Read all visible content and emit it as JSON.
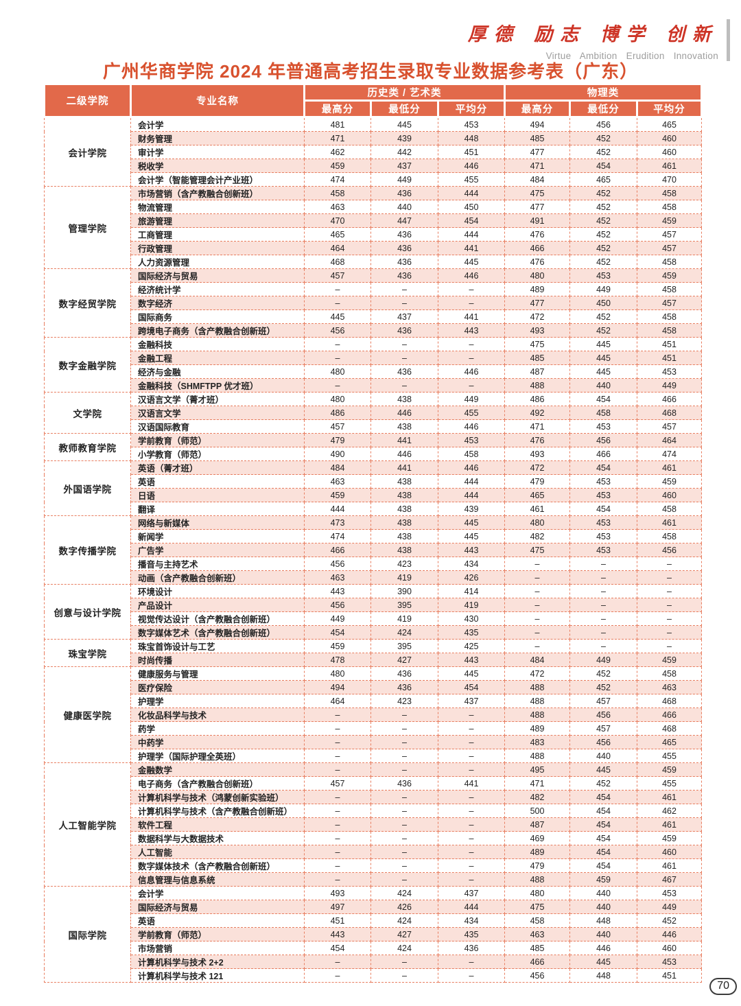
{
  "page": {
    "motto_cn": "厚德 励志 博学 创新",
    "motto_en": "Virtue  Ambition  Erudition  Innovation",
    "title": "广州华商学院 2024 年普通高考招生录取专业数据参考表（广东）",
    "page_number": "70"
  },
  "colors": {
    "header_bg": "#e2694a",
    "row_alt_bg": "#fae1da",
    "dashed_border": "#e87d5f",
    "title_text": "#d8512e",
    "motto_red": "#cd3426",
    "motto_gray": "#9d9d9d"
  },
  "table": {
    "headers": {
      "college": "二级学院",
      "major": "专业名称",
      "hist_group": "历史类 / 艺术类",
      "phys_group": "物理类",
      "sub": [
        "最高分",
        "最低分",
        "平均分",
        "最高分",
        "最低分",
        "平均分"
      ]
    },
    "colleges": [
      {
        "name": "会计学院",
        "majors": [
          {
            "name": "会计学",
            "scores": [
              "481",
              "445",
              "453",
              "494",
              "456",
              "465"
            ]
          },
          {
            "name": "财务管理",
            "scores": [
              "471",
              "439",
              "448",
              "485",
              "452",
              "460"
            ]
          },
          {
            "name": "审计学",
            "scores": [
              "462",
              "442",
              "451",
              "477",
              "452",
              "460"
            ]
          },
          {
            "name": "税收学",
            "scores": [
              "459",
              "437",
              "446",
              "471",
              "454",
              "461"
            ]
          },
          {
            "name": "会计学（智能管理会计产业班）",
            "scores": [
              "474",
              "449",
              "455",
              "484",
              "465",
              "470"
            ]
          }
        ]
      },
      {
        "name": "管理学院",
        "majors": [
          {
            "name": "市场营销（含产教融合创新班）",
            "scores": [
              "458",
              "436",
              "444",
              "475",
              "452",
              "458"
            ]
          },
          {
            "name": "物流管理",
            "scores": [
              "463",
              "440",
              "450",
              "477",
              "452",
              "458"
            ]
          },
          {
            "name": "旅游管理",
            "scores": [
              "470",
              "447",
              "454",
              "491",
              "452",
              "459"
            ]
          },
          {
            "name": "工商管理",
            "scores": [
              "465",
              "436",
              "444",
              "476",
              "452",
              "457"
            ]
          },
          {
            "name": "行政管理",
            "scores": [
              "464",
              "436",
              "441",
              "466",
              "452",
              "457"
            ]
          },
          {
            "name": "人力资源管理",
            "scores": [
              "468",
              "436",
              "445",
              "476",
              "452",
              "458"
            ]
          }
        ]
      },
      {
        "name": "数字经贸学院",
        "majors": [
          {
            "name": "国际经济与贸易",
            "scores": [
              "457",
              "436",
              "446",
              "480",
              "453",
              "459"
            ]
          },
          {
            "name": "经济统计学",
            "scores": [
              "–",
              "–",
              "–",
              "489",
              "449",
              "458"
            ]
          },
          {
            "name": "数字经济",
            "scores": [
              "–",
              "–",
              "–",
              "477",
              "450",
              "457"
            ]
          },
          {
            "name": "国际商务",
            "scores": [
              "445",
              "437",
              "441",
              "472",
              "452",
              "458"
            ]
          },
          {
            "name": "跨境电子商务（含产教融合创新班）",
            "scores": [
              "456",
              "436",
              "443",
              "493",
              "452",
              "458"
            ]
          }
        ]
      },
      {
        "name": "数字金融学院",
        "majors": [
          {
            "name": "金融科技",
            "scores": [
              "–",
              "–",
              "–",
              "475",
              "445",
              "451"
            ]
          },
          {
            "name": "金融工程",
            "scores": [
              "–",
              "–",
              "–",
              "485",
              "445",
              "451"
            ]
          },
          {
            "name": "经济与金融",
            "scores": [
              "480",
              "436",
              "446",
              "487",
              "445",
              "453"
            ]
          },
          {
            "name": "金融科技（SHMFTPP 优才班）",
            "scores": [
              "–",
              "–",
              "–",
              "488",
              "440",
              "449"
            ]
          }
        ]
      },
      {
        "name": "文学院",
        "majors": [
          {
            "name": "汉语言文学（菁才班）",
            "scores": [
              "480",
              "438",
              "449",
              "486",
              "454",
              "466"
            ]
          },
          {
            "name": "汉语言文学",
            "scores": [
              "486",
              "446",
              "455",
              "492",
              "458",
              "468"
            ]
          },
          {
            "name": "汉语国际教育",
            "scores": [
              "457",
              "438",
              "446",
              "471",
              "453",
              "457"
            ]
          }
        ]
      },
      {
        "name": "教师教育学院",
        "majors": [
          {
            "name": "学前教育（师范）",
            "scores": [
              "479",
              "441",
              "453",
              "476",
              "456",
              "464"
            ]
          },
          {
            "name": "小学教育（师范）",
            "scores": [
              "490",
              "446",
              "458",
              "493",
              "466",
              "474"
            ]
          }
        ]
      },
      {
        "name": "外国语学院",
        "majors": [
          {
            "name": "英语（菁才班）",
            "scores": [
              "484",
              "441",
              "446",
              "472",
              "454",
              "461"
            ]
          },
          {
            "name": "英语",
            "scores": [
              "463",
              "438",
              "444",
              "479",
              "453",
              "459"
            ]
          },
          {
            "name": "日语",
            "scores": [
              "459",
              "438",
              "444",
              "465",
              "453",
              "460"
            ]
          },
          {
            "name": "翻译",
            "scores": [
              "444",
              "438",
              "439",
              "461",
              "454",
              "458"
            ]
          }
        ]
      },
      {
        "name": "数字传播学院",
        "majors": [
          {
            "name": "网络与新媒体",
            "scores": [
              "473",
              "438",
              "445",
              "480",
              "453",
              "461"
            ]
          },
          {
            "name": "新闻学",
            "scores": [
              "474",
              "438",
              "445",
              "482",
              "453",
              "458"
            ]
          },
          {
            "name": "广告学",
            "scores": [
              "466",
              "438",
              "443",
              "475",
              "453",
              "456"
            ]
          },
          {
            "name": "播音与主持艺术",
            "scores": [
              "456",
              "423",
              "434",
              "–",
              "–",
              "–"
            ]
          },
          {
            "name": "动画（含产教融合创新班）",
            "scores": [
              "463",
              "419",
              "426",
              "–",
              "–",
              "–"
            ]
          }
        ]
      },
      {
        "name": "创意与设计学院",
        "majors": [
          {
            "name": "环境设计",
            "scores": [
              "443",
              "390",
              "414",
              "–",
              "–",
              "–"
            ]
          },
          {
            "name": "产品设计",
            "scores": [
              "456",
              "395",
              "419",
              "–",
              "–",
              "–"
            ]
          },
          {
            "name": "视觉传达设计（含产教融合创新班）",
            "scores": [
              "449",
              "419",
              "430",
              "–",
              "–",
              "–"
            ]
          },
          {
            "name": "数字媒体艺术（含产教融合创新班）",
            "scores": [
              "454",
              "424",
              "435",
              "–",
              "–",
              "–"
            ]
          }
        ]
      },
      {
        "name": "珠宝学院",
        "majors": [
          {
            "name": "珠宝首饰设计与工艺",
            "scores": [
              "459",
              "395",
              "425",
              "–",
              "–",
              "–"
            ]
          },
          {
            "name": "时尚传播",
            "scores": [
              "478",
              "427",
              "443",
              "484",
              "449",
              "459"
            ]
          }
        ]
      },
      {
        "name": "健康医学院",
        "majors": [
          {
            "name": "健康服务与管理",
            "scores": [
              "480",
              "436",
              "445",
              "472",
              "452",
              "458"
            ]
          },
          {
            "name": "医疗保险",
            "scores": [
              "494",
              "436",
              "454",
              "488",
              "452",
              "463"
            ]
          },
          {
            "name": "护理学",
            "scores": [
              "464",
              "423",
              "437",
              "488",
              "457",
              "468"
            ]
          },
          {
            "name": "化妆品科学与技术",
            "scores": [
              "–",
              "–",
              "–",
              "488",
              "456",
              "466"
            ]
          },
          {
            "name": "药学",
            "scores": [
              "–",
              "–",
              "–",
              "489",
              "457",
              "468"
            ]
          },
          {
            "name": "中药学",
            "scores": [
              "–",
              "–",
              "–",
              "483",
              "456",
              "465"
            ]
          },
          {
            "name": "护理学（国际护理全英班）",
            "scores": [
              "–",
              "–",
              "–",
              "488",
              "440",
              "455"
            ]
          }
        ]
      },
      {
        "name": "人工智能学院",
        "majors": [
          {
            "name": "金融数学",
            "scores": [
              "–",
              "–",
              "–",
              "495",
              "445",
              "459"
            ]
          },
          {
            "name": "电子商务（含产教融合创新班）",
            "scores": [
              "457",
              "436",
              "441",
              "471",
              "452",
              "455"
            ]
          },
          {
            "name": "计算机科学与技术（鸿蒙创新实验班）",
            "scores": [
              "–",
              "–",
              "–",
              "482",
              "454",
              "461"
            ]
          },
          {
            "name": "计算机科学与技术（含产教融合创新班）",
            "scores": [
              "–",
              "–",
              "–",
              "500",
              "454",
              "462"
            ]
          },
          {
            "name": "软件工程",
            "scores": [
              "–",
              "–",
              "–",
              "487",
              "454",
              "461"
            ]
          },
          {
            "name": "数据科学与大数据技术",
            "scores": [
              "–",
              "–",
              "–",
              "469",
              "454",
              "459"
            ]
          },
          {
            "name": "人工智能",
            "scores": [
              "–",
              "–",
              "–",
              "489",
              "454",
              "460"
            ]
          },
          {
            "name": "数字媒体技术（含产教融合创新班）",
            "scores": [
              "–",
              "–",
              "–",
              "479",
              "454",
              "461"
            ]
          },
          {
            "name": "信息管理与信息系统",
            "scores": [
              "–",
              "–",
              "–",
              "488",
              "459",
              "467"
            ]
          }
        ]
      },
      {
        "name": "国际学院",
        "majors": [
          {
            "name": "会计学",
            "scores": [
              "493",
              "424",
              "437",
              "480",
              "440",
              "453"
            ]
          },
          {
            "name": "国际经济与贸易",
            "scores": [
              "497",
              "426",
              "444",
              "475",
              "440",
              "449"
            ]
          },
          {
            "name": "英语",
            "scores": [
              "451",
              "424",
              "434",
              "458",
              "448",
              "452"
            ]
          },
          {
            "name": "学前教育（师范）",
            "scores": [
              "443",
              "427",
              "435",
              "463",
              "440",
              "446"
            ]
          },
          {
            "name": "市场营销",
            "scores": [
              "454",
              "424",
              "436",
              "485",
              "446",
              "460"
            ]
          },
          {
            "name": "计算机科学与技术 2+2",
            "scores": [
              "–",
              "–",
              "–",
              "466",
              "445",
              "453"
            ]
          },
          {
            "name": "计算机科学与技术 121",
            "scores": [
              "–",
              "–",
              "–",
              "456",
              "448",
              "451"
            ]
          }
        ]
      }
    ]
  }
}
